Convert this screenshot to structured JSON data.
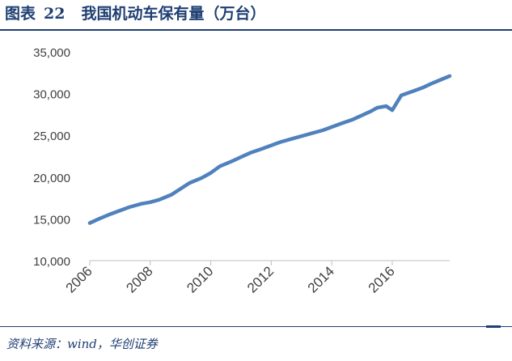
{
  "figure": {
    "label": "图表",
    "number": "22",
    "title": "我国机动车保有量（万台）"
  },
  "source": "资料来源：wind，华创证券",
  "colors": {
    "line": "#4f81bd",
    "axis": "#bfbfbf",
    "title": "#1f3f73"
  },
  "chart_data": {
    "type": "line",
    "title": "我国机动车保有量（万台）",
    "xlabel": "",
    "ylabel": "",
    "ylim": [
      10000,
      35000
    ],
    "xlim": [
      2006.0,
      2017.9
    ],
    "yticks": [
      10000,
      15000,
      20000,
      25000,
      30000,
      35000
    ],
    "ytick_labels": [
      "10,000",
      "15,000",
      "20,000",
      "25,000",
      "30,000",
      "35,000"
    ],
    "xticks": [
      2006,
      2008,
      2010,
      2012,
      2014,
      2016
    ],
    "xtick_labels": [
      "2006",
      "2008",
      "2010",
      "2012",
      "2014",
      "2016"
    ],
    "grid": false,
    "legend": "none",
    "series": [
      {
        "x": [
          2006.0,
          2006.3,
          2006.7,
          2007.0,
          2007.3,
          2007.7,
          2008.0,
          2008.3,
          2008.7,
          2009.0,
          2009.3,
          2009.7,
          2010.0,
          2010.3,
          2010.7,
          2011.0,
          2011.3,
          2011.7,
          2012.0,
          2012.3,
          2012.7,
          2013.0,
          2013.3,
          2013.7,
          2014.0,
          2014.3,
          2014.7,
          2015.0,
          2015.3,
          2015.5,
          2015.8,
          2016.0,
          2016.3,
          2016.7,
          2017.0,
          2017.3,
          2017.7,
          2017.9
        ],
        "y": [
          14500,
          15000,
          15600,
          16000,
          16400,
          16800,
          17000,
          17300,
          17900,
          18600,
          19300,
          19900,
          20500,
          21300,
          21900,
          22400,
          22900,
          23400,
          23800,
          24200,
          24600,
          24900,
          25200,
          25600,
          26000,
          26400,
          26900,
          27400,
          27900,
          28300,
          28500,
          28000,
          29800,
          30300,
          30700,
          31200,
          31800,
          32100
        ]
      }
    ]
  }
}
